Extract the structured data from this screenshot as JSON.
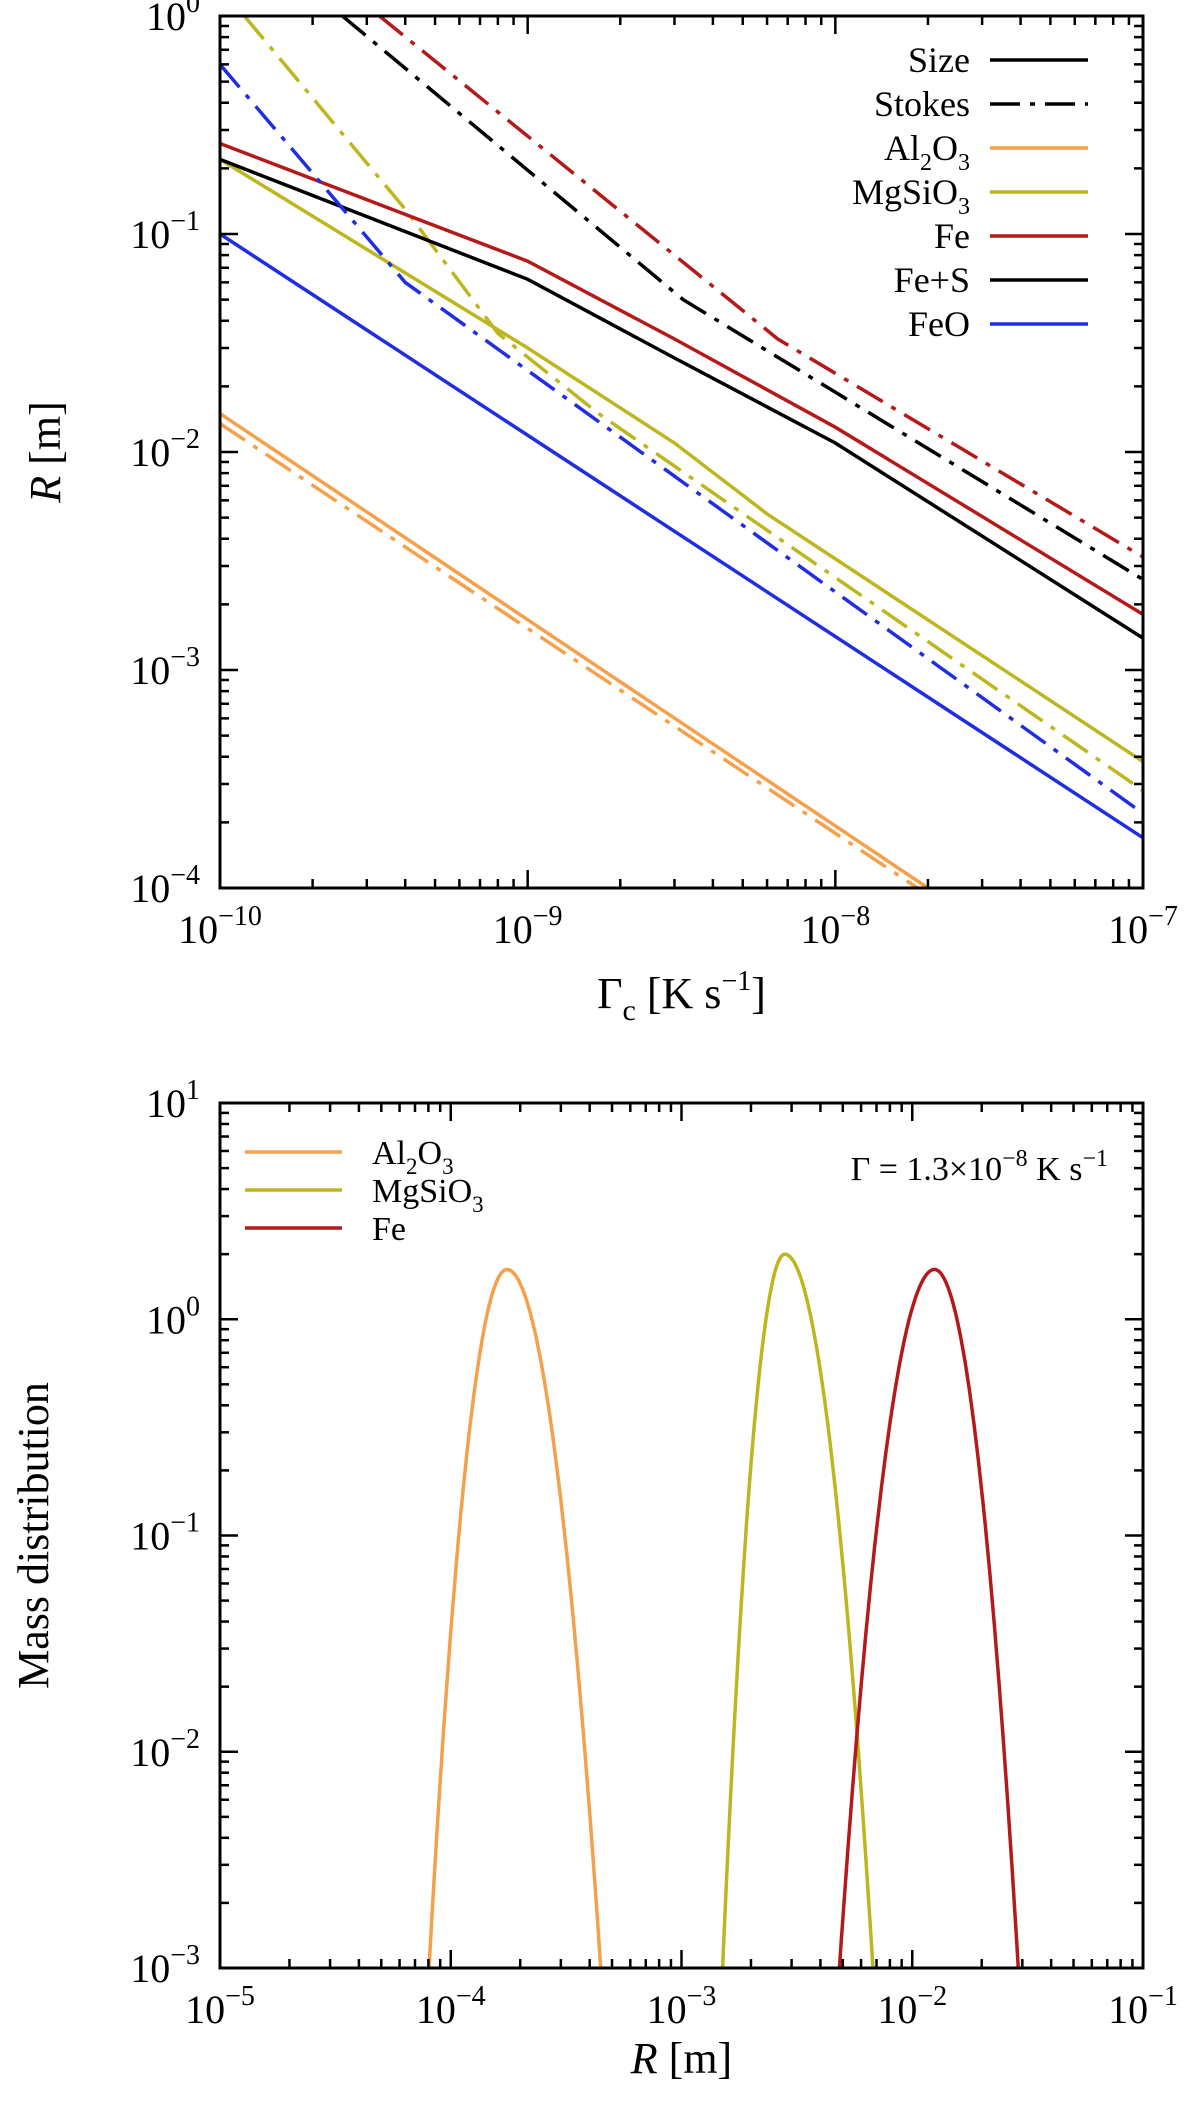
{
  "chart_data": [
    {
      "type": "line",
      "scale": {
        "x": "log",
        "y": "log"
      },
      "xlabel": {
        "main": "Γ",
        "sub": "c",
        "unit_pre": " [K s",
        "unit_exp": "−1",
        "unit_post": "]"
      },
      "ylabel": {
        "italic": "R",
        "unit": " [m]"
      },
      "xlim": [
        1e-10,
        1e-07
      ],
      "ylim": [
        0.0001,
        1
      ],
      "xticks": [
        {
          "value": 1e-10,
          "base": "10",
          "exp": "−10"
        },
        {
          "value": 1e-09,
          "base": "10",
          "exp": "−9"
        },
        {
          "value": 1e-08,
          "base": "10",
          "exp": "−8"
        },
        {
          "value": 1e-07,
          "base": "10",
          "exp": "−7"
        }
      ],
      "yticks": [
        {
          "value": 0.0001,
          "base": "10",
          "exp": "−4"
        },
        {
          "value": 0.001,
          "base": "10",
          "exp": "−3"
        },
        {
          "value": 0.01,
          "base": "10",
          "exp": "−2"
        },
        {
          "value": 0.1,
          "base": "10",
          "exp": "−1"
        },
        {
          "value": 1,
          "base": "10",
          "exp": "0"
        }
      ],
      "legend": {
        "position": "top-right",
        "entries": [
          {
            "label": "Size",
            "style": "solid",
            "color": "#000000"
          },
          {
            "label": "Stokes",
            "style": "dashdot",
            "color": "#000000"
          },
          {
            "label": "Al",
            "sub1": "2",
            "mid": "O",
            "sub2": "3",
            "style": "solid",
            "color": "#f5a04a"
          },
          {
            "label": "MgSiO",
            "sub1": "",
            "mid": "",
            "sub2": "3",
            "style": "solid",
            "color": "#bdb61e"
          },
          {
            "label": "Fe",
            "style": "solid",
            "color": "#b51a1a"
          },
          {
            "label": "Fe+S",
            "style": "solid",
            "color": "#000000"
          },
          {
            "label": "FeO",
            "style": "solid",
            "color": "#1f2ee0"
          }
        ]
      },
      "series": [
        {
          "name": "Al2O3 size",
          "color": "#f5a04a",
          "style": "solid",
          "x": [
            1e-10,
            2e-08
          ],
          "y": [
            0.015,
            0.0001
          ]
        },
        {
          "name": "Al2O3 stokes",
          "color": "#f5a04a",
          "style": "dashdot",
          "x": [
            1e-10,
            1.85e-08
          ],
          "y": [
            0.0135,
            0.0001
          ]
        },
        {
          "name": "MgSiO3 size",
          "color": "#bdb61e",
          "style": "solid",
          "x": [
            1e-10,
            1e-09,
            3e-09,
            6e-09,
            1e-07
          ],
          "y": [
            0.22,
            0.03,
            0.011,
            0.0052,
            0.00038
          ]
        },
        {
          "name": "MgSiO3 stokes",
          "color": "#bdb61e",
          "style": "dashdot",
          "x": [
            1.2e-10,
            4e-10,
            8e-10,
            1.7e-09,
            1e-07
          ],
          "y": [
            1.0,
            0.13,
            0.035,
            0.015,
            0.00028
          ]
        },
        {
          "name": "Fe size",
          "color": "#b51a1a",
          "style": "solid",
          "x": [
            1e-10,
            1e-09,
            3e-09,
            1e-08,
            1e-07
          ],
          "y": [
            0.26,
            0.075,
            0.033,
            0.013,
            0.0018
          ]
        },
        {
          "name": "Fe stokes",
          "color": "#b51a1a",
          "style": "dashdot",
          "x": [
            3.3e-10,
            6.5e-09,
            1e-07
          ],
          "y": [
            1.0,
            0.033,
            0.0033
          ]
        },
        {
          "name": "Fe+S size",
          "color": "#000000",
          "style": "solid",
          "x": [
            1e-10,
            1e-09,
            3e-09,
            1e-08,
            1e-07
          ],
          "y": [
            0.22,
            0.062,
            0.027,
            0.011,
            0.0014
          ]
        },
        {
          "name": "Fe+S stokes",
          "color": "#000000",
          "style": "dashdot",
          "x": [
            2.5e-10,
            3.2e-09,
            1e-07
          ],
          "y": [
            1.0,
            0.05,
            0.0026
          ]
        },
        {
          "name": "FeO size",
          "color": "#1f2ee0",
          "style": "solid",
          "x": [
            1e-10,
            1e-07
          ],
          "y": [
            0.1,
            0.00017
          ]
        },
        {
          "name": "FeO stokes",
          "color": "#1f2ee0",
          "style": "dashdot",
          "x": [
            1e-10,
            2e-10,
            4e-10,
            1e-07
          ],
          "y": [
            0.6,
            0.19,
            0.06,
            0.00022
          ]
        }
      ]
    },
    {
      "type": "line",
      "scale": {
        "x": "log",
        "y": "log"
      },
      "xlabel": {
        "italic": "R",
        "unit": " [m]"
      },
      "ylabel": {
        "text": "Mass distribution"
      },
      "xlim": [
        1e-05,
        0.1
      ],
      "ylim": [
        0.001,
        10
      ],
      "xticks": [
        {
          "value": 1e-05,
          "base": "10",
          "exp": "−5"
        },
        {
          "value": 0.0001,
          "base": "10",
          "exp": "−4"
        },
        {
          "value": 0.001,
          "base": "10",
          "exp": "−3"
        },
        {
          "value": 0.01,
          "base": "10",
          "exp": "−2"
        },
        {
          "value": 0.1,
          "base": "10",
          "exp": "−1"
        }
      ],
      "yticks": [
        {
          "value": 0.001,
          "base": "10",
          "exp": "−3"
        },
        {
          "value": 0.01,
          "base": "10",
          "exp": "−2"
        },
        {
          "value": 0.1,
          "base": "10",
          "exp": "−1"
        },
        {
          "value": 1,
          "base": "10",
          "exp": "0"
        },
        {
          "value": 10,
          "base": "10",
          "exp": "1"
        }
      ],
      "annotation": {
        "pre": "Γ = 1.3×10",
        "exp": "−8",
        "post": " K s",
        "exp2": "−1"
      },
      "legend": {
        "position": "top-left",
        "entries": [
          {
            "label": "Al",
            "sub1": "2",
            "mid": "O",
            "sub2": "3",
            "color": "#f5a04a"
          },
          {
            "label": "MgSiO",
            "sub1": "",
            "mid": "",
            "sub2": "3",
            "color": "#bdb61e"
          },
          {
            "label": "Fe",
            "color": "#b51a1a"
          }
        ]
      },
      "series": [
        {
          "name": "Al2O3",
          "color": "#f5a04a",
          "peak_x": 0.000175,
          "peak_y": 1.7,
          "left_x": 8e-05,
          "right_x": 0.00045
        },
        {
          "name": "MgSiO3",
          "color": "#bdb61e",
          "peak_x": 0.0028,
          "peak_y": 2.0,
          "left_x": 0.0015,
          "right_x": 0.0068
        },
        {
          "name": "Fe",
          "color": "#b51a1a",
          "peak_x": 0.0125,
          "peak_y": 1.7,
          "left_x": 0.0048,
          "right_x": 0.029
        }
      ]
    }
  ]
}
